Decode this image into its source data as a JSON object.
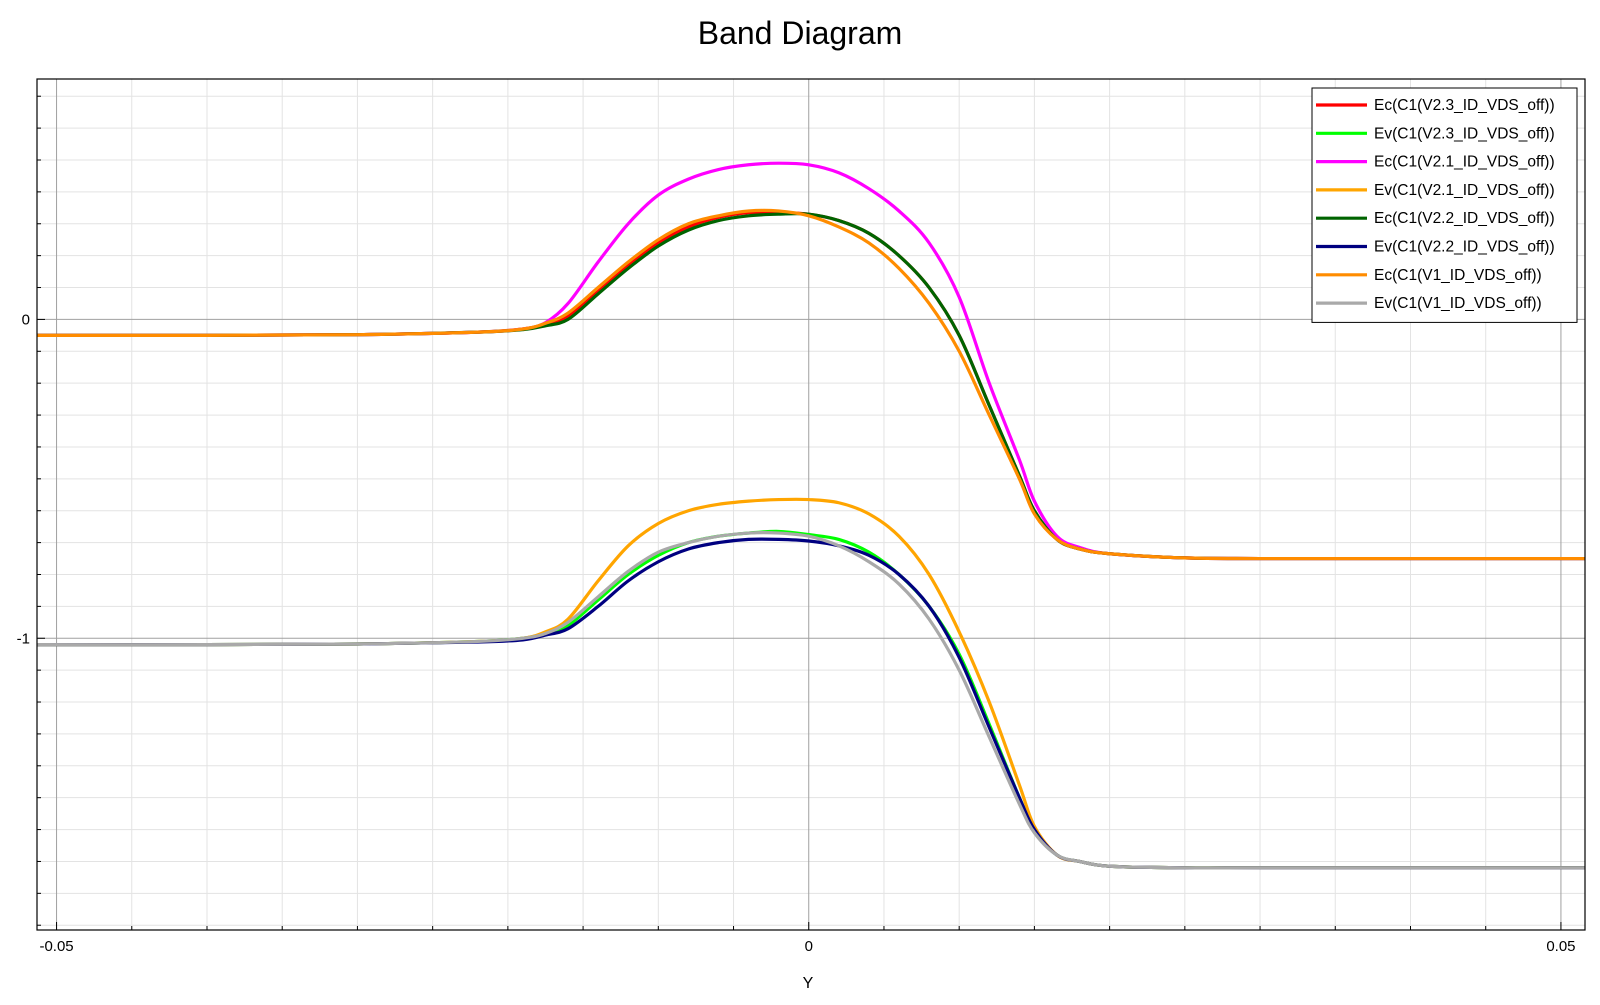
{
  "chart_data": {
    "type": "line",
    "title": "Band Diagram",
    "xlabel": "Y",
    "ylabel": "",
    "xlim": [
      -0.0513,
      0.0516
    ],
    "ylim": [
      -1.915,
      0.754
    ],
    "x_ticks": [
      {
        "value": -0.05,
        "label": "-0.05"
      },
      {
        "value": 0,
        "label": "0"
      },
      {
        "value": 0.05,
        "label": "0.05"
      }
    ],
    "y_ticks": [
      {
        "value": 0,
        "label": "0"
      },
      {
        "value": -1,
        "label": "-1"
      }
    ],
    "grid": true,
    "legend_position": "top-right",
    "series": [
      {
        "name": "Ec(C1(V2.3_ID_VDS_off))",
        "color": "#ff0000",
        "x": [
          -0.0515,
          -0.04,
          -0.03,
          -0.022,
          -0.019,
          -0.0175,
          -0.016,
          -0.014,
          -0.012,
          -0.01,
          -0.008,
          -0.006,
          -0.004,
          -0.002,
          0,
          0.002,
          0.004,
          0.006,
          0.008,
          0.01,
          0.012,
          0.014,
          0.015,
          0.0165,
          0.018,
          0.02,
          0.025,
          0.03,
          0.04,
          0.0516
        ],
        "y": [
          -0.05,
          -0.05,
          -0.048,
          -0.04,
          -0.03,
          -0.015,
          0.01,
          0.09,
          0.17,
          0.24,
          0.29,
          0.32,
          0.335,
          0.335,
          0.33,
          0.31,
          0.27,
          0.2,
          0.1,
          -0.05,
          -0.27,
          -0.49,
          -0.6,
          -0.69,
          -0.72,
          -0.735,
          -0.748,
          -0.75,
          -0.75,
          -0.75
        ]
      },
      {
        "name": "Ev(C1(V2.3_ID_VDS_off))",
        "color": "#00ff00",
        "x": [
          -0.0515,
          -0.04,
          -0.03,
          -0.022,
          -0.019,
          -0.0175,
          -0.016,
          -0.014,
          -0.012,
          -0.01,
          -0.008,
          -0.006,
          -0.004,
          -0.002,
          0,
          0.002,
          0.004,
          0.006,
          0.008,
          0.01,
          0.012,
          0.014,
          0.015,
          0.0165,
          0.018,
          0.02,
          0.025,
          0.03,
          0.04,
          0.0516
        ],
        "y": [
          -1.02,
          -1.02,
          -1.018,
          -1.01,
          -1.0,
          -0.985,
          -0.96,
          -0.88,
          -0.8,
          -0.74,
          -0.7,
          -0.68,
          -0.67,
          -0.665,
          -0.675,
          -0.69,
          -0.73,
          -0.8,
          -0.9,
          -1.05,
          -1.27,
          -1.5,
          -1.6,
          -1.68,
          -1.7,
          -1.715,
          -1.72,
          -1.72,
          -1.72,
          -1.72
        ]
      },
      {
        "name": "Ec(C1(V2.1_ID_VDS_off))",
        "color": "#ff00ff",
        "x": [
          -0.0515,
          -0.04,
          -0.03,
          -0.022,
          -0.019,
          -0.0175,
          -0.016,
          -0.014,
          -0.012,
          -0.01,
          -0.008,
          -0.006,
          -0.004,
          -0.002,
          0,
          0.002,
          0.004,
          0.006,
          0.008,
          0.01,
          0.012,
          0.014,
          0.015,
          0.0165,
          0.018,
          0.02,
          0.025,
          0.03,
          0.04,
          0.0516
        ],
        "y": [
          -0.05,
          -0.05,
          -0.048,
          -0.04,
          -0.03,
          -0.01,
          0.05,
          0.18,
          0.3,
          0.39,
          0.44,
          0.47,
          0.485,
          0.49,
          0.485,
          0.46,
          0.41,
          0.34,
          0.24,
          0.07,
          -0.2,
          -0.44,
          -0.57,
          -0.68,
          -0.715,
          -0.735,
          -0.748,
          -0.75,
          -0.75,
          -0.75
        ]
      },
      {
        "name": "Ev(C1(V2.1_ID_VDS_off))",
        "color": "#ffa500",
        "x": [
          -0.0515,
          -0.04,
          -0.03,
          -0.022,
          -0.019,
          -0.0175,
          -0.016,
          -0.014,
          -0.012,
          -0.01,
          -0.008,
          -0.006,
          -0.004,
          -0.002,
          0,
          0.002,
          0.004,
          0.006,
          0.008,
          0.01,
          0.012,
          0.014,
          0.015,
          0.0165,
          0.018,
          0.02,
          0.025,
          0.03,
          0.04,
          0.0516
        ],
        "y": [
          -1.02,
          -1.02,
          -1.018,
          -1.01,
          -1.0,
          -0.98,
          -0.94,
          -0.82,
          -0.71,
          -0.64,
          -0.6,
          -0.58,
          -0.57,
          -0.565,
          -0.565,
          -0.575,
          -0.61,
          -0.68,
          -0.8,
          -0.98,
          -1.2,
          -1.46,
          -1.59,
          -1.68,
          -1.7,
          -1.715,
          -1.72,
          -1.72,
          -1.72,
          -1.72
        ]
      },
      {
        "name": "Ec(C1(V2.2_ID_VDS_off))",
        "color": "#006400",
        "x": [
          -0.0515,
          -0.04,
          -0.03,
          -0.022,
          -0.019,
          -0.0175,
          -0.016,
          -0.014,
          -0.012,
          -0.01,
          -0.008,
          -0.006,
          -0.004,
          -0.002,
          0,
          0.002,
          0.004,
          0.006,
          0.008,
          0.01,
          0.012,
          0.014,
          0.015,
          0.0165,
          0.018,
          0.02,
          0.025,
          0.03,
          0.04,
          0.0516
        ],
        "y": [
          -0.05,
          -0.05,
          -0.048,
          -0.04,
          -0.032,
          -0.02,
          0.0,
          0.08,
          0.16,
          0.23,
          0.28,
          0.31,
          0.325,
          0.33,
          0.33,
          0.31,
          0.27,
          0.2,
          0.1,
          -0.05,
          -0.27,
          -0.49,
          -0.6,
          -0.69,
          -0.72,
          -0.735,
          -0.748,
          -0.75,
          -0.75,
          -0.75
        ]
      },
      {
        "name": "Ev(C1(V2.2_ID_VDS_off))",
        "color": "#000080",
        "x": [
          -0.0515,
          -0.04,
          -0.03,
          -0.022,
          -0.019,
          -0.0175,
          -0.016,
          -0.014,
          -0.012,
          -0.01,
          -0.008,
          -0.006,
          -0.004,
          -0.002,
          0,
          0.002,
          0.004,
          0.006,
          0.008,
          0.01,
          0.012,
          0.014,
          0.015,
          0.0165,
          0.018,
          0.02,
          0.025,
          0.03,
          0.04,
          0.0516
        ],
        "y": [
          -1.02,
          -1.02,
          -1.018,
          -1.012,
          -1.005,
          -0.99,
          -0.97,
          -0.9,
          -0.82,
          -0.76,
          -0.72,
          -0.7,
          -0.69,
          -0.69,
          -0.695,
          -0.71,
          -0.74,
          -0.8,
          -0.9,
          -1.06,
          -1.28,
          -1.5,
          -1.6,
          -1.68,
          -1.7,
          -1.715,
          -1.72,
          -1.72,
          -1.72,
          -1.72
        ]
      },
      {
        "name": "Ec(C1(V1_ID_VDS_off))",
        "color": "#ff8c00",
        "x": [
          -0.0515,
          -0.04,
          -0.03,
          -0.022,
          -0.019,
          -0.0175,
          -0.016,
          -0.014,
          -0.012,
          -0.01,
          -0.008,
          -0.006,
          -0.004,
          -0.002,
          0,
          0.002,
          0.004,
          0.006,
          0.008,
          0.01,
          0.012,
          0.014,
          0.015,
          0.0165,
          0.018,
          0.02,
          0.025,
          0.03,
          0.04,
          0.0516
        ],
        "y": [
          -0.05,
          -0.05,
          -0.048,
          -0.04,
          -0.03,
          -0.012,
          0.02,
          0.1,
          0.18,
          0.25,
          0.3,
          0.325,
          0.34,
          0.34,
          0.325,
          0.29,
          0.24,
          0.16,
          0.05,
          -0.1,
          -0.3,
          -0.5,
          -0.61,
          -0.69,
          -0.72,
          -0.735,
          -0.748,
          -0.75,
          -0.75,
          -0.75
        ]
      },
      {
        "name": "Ev(C1(V1_ID_VDS_off))",
        "color": "#a9a9a9",
        "x": [
          -0.0515,
          -0.04,
          -0.03,
          -0.022,
          -0.019,
          -0.0175,
          -0.016,
          -0.014,
          -0.012,
          -0.01,
          -0.008,
          -0.006,
          -0.004,
          -0.002,
          0,
          0.002,
          0.004,
          0.006,
          0.008,
          0.01,
          0.012,
          0.014,
          0.015,
          0.0165,
          0.018,
          0.02,
          0.025,
          0.03,
          0.04,
          0.0516
        ],
        "y": [
          -1.02,
          -1.02,
          -1.018,
          -1.01,
          -1.0,
          -0.985,
          -0.95,
          -0.87,
          -0.79,
          -0.73,
          -0.7,
          -0.68,
          -0.67,
          -0.67,
          -0.68,
          -0.71,
          -0.76,
          -0.83,
          -0.94,
          -1.1,
          -1.31,
          -1.52,
          -1.61,
          -1.68,
          -1.7,
          -1.715,
          -1.72,
          -1.72,
          -1.72,
          -1.72
        ]
      }
    ]
  }
}
